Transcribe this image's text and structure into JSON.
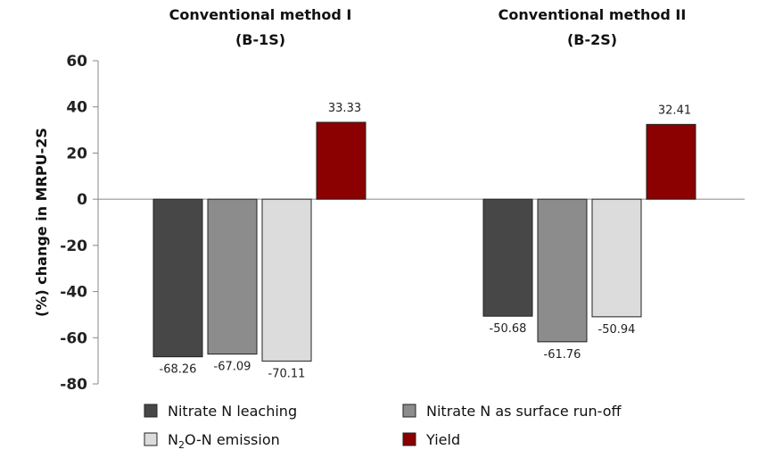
{
  "chart_data": {
    "type": "bar",
    "ylabel": "(%) change in MRPU-2S",
    "ylim": [
      -80,
      60
    ],
    "yticks": [
      -80,
      -60,
      -40,
      -20,
      0,
      20,
      40,
      60
    ],
    "grid": false,
    "legend_placement": "bottom",
    "groups": [
      {
        "title_line1": "Conventional method I",
        "title_line2": "(B-1S)"
      },
      {
        "title_line1": "Conventional method II",
        "title_line2": "(B-2S)"
      }
    ],
    "series": [
      {
        "name": "Nitrate N leaching",
        "color": "#474747",
        "values": [
          -68.26,
          -50.68
        ],
        "labels": [
          "-68.26",
          "-50.68"
        ]
      },
      {
        "name": "Nitrate N as surface run-off",
        "color": "#8c8c8c",
        "values": [
          -67.09,
          -61.76
        ],
        "labels": [
          "-67.09",
          "-61.76"
        ]
      },
      {
        "name": "N2O-N emission",
        "name_main": "N",
        "name_sub": "2",
        "name_rest": "O-N emission",
        "color": "#dcdcdc",
        "values": [
          -70.11,
          -50.94
        ],
        "labels": [
          "-70.11",
          "-50.94"
        ]
      },
      {
        "name": "Yield",
        "color": "#8b0000",
        "values": [
          33.33,
          32.41
        ],
        "labels": [
          "33.33",
          "32.41"
        ]
      }
    ]
  }
}
